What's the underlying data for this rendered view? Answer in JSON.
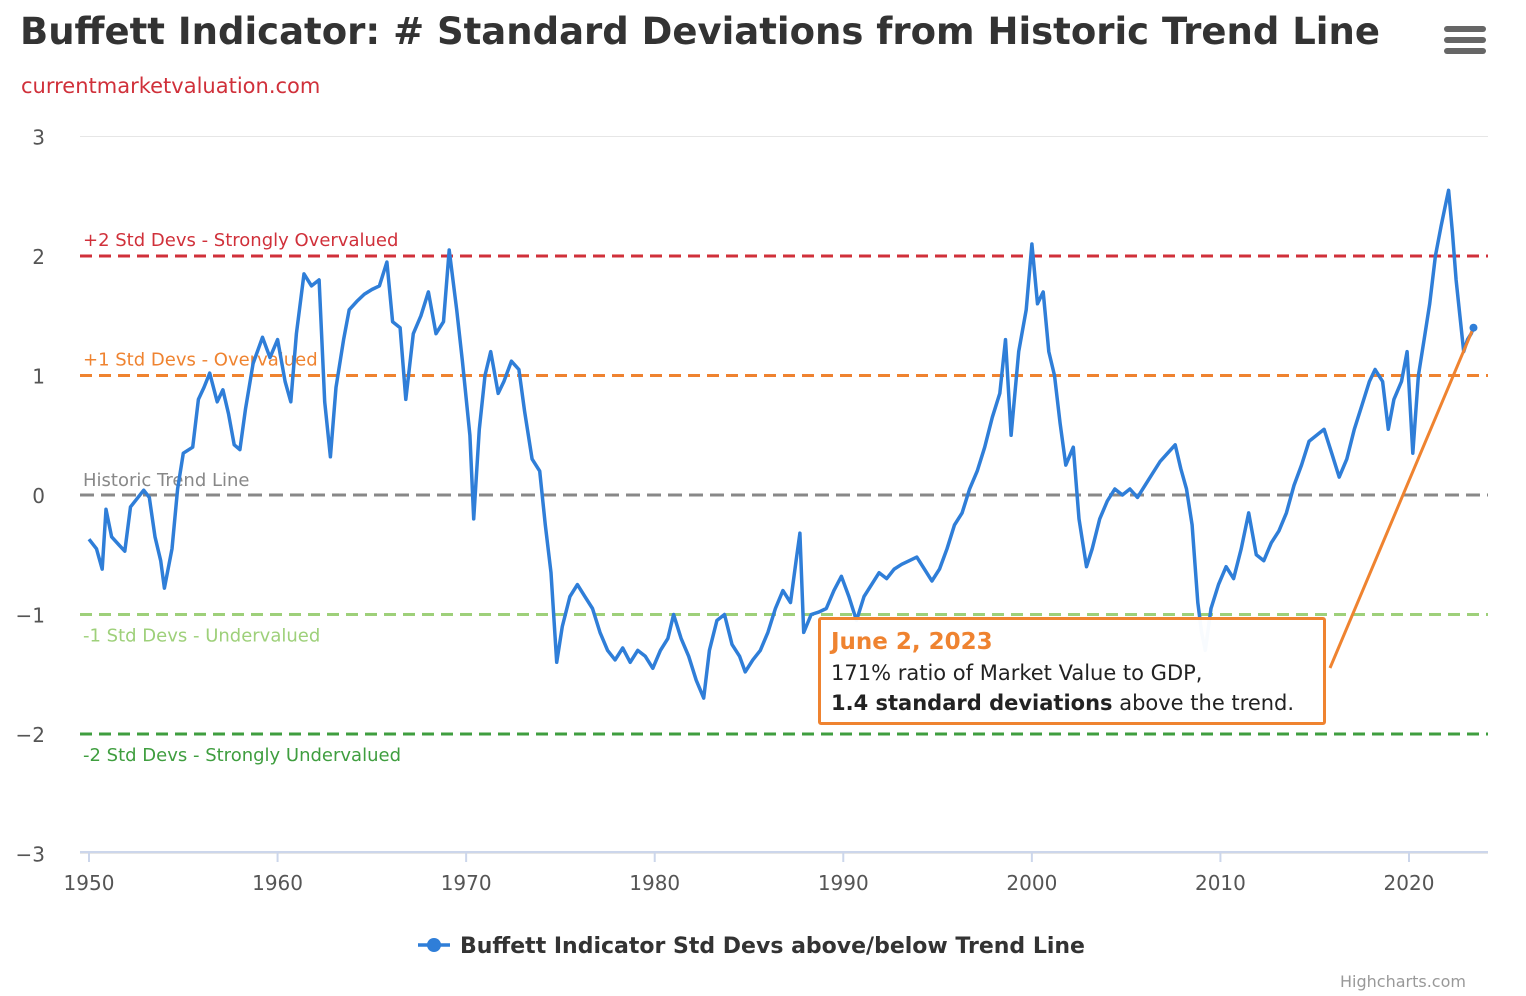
{
  "header": {
    "title": "Buffett Indicator: # Standard Deviations from Historic Trend Line",
    "subtitle": "currentmarketvaluation.com",
    "menu_icon": "hamburger-menu-icon"
  },
  "tooltip": {
    "date": "June 2, 2023",
    "line1": "171% ratio of Market Value to GDP,",
    "line2_bold": "1.4 standard deviations",
    "line2_rest": " above the trend."
  },
  "credits": "Highcharts.com",
  "colors": {
    "series": "#2f7ed8",
    "plus2": "#d0303a",
    "plus1": "#ef8330",
    "trend": "#888888",
    "minus1": "#9ed07a",
    "minus2": "#3f9e3f",
    "tooltip_border": "#ef8330"
  },
  "chart_data": {
    "type": "line",
    "title": "Buffett Indicator: # Standard Deviations from Historic Trend Line",
    "subtitle": "currentmarketvaluation.com",
    "xlim": [
      1950,
      2023.5
    ],
    "ylim": [
      -3,
      3
    ],
    "x_ticks": [
      1950,
      1960,
      1970,
      1980,
      1990,
      2000,
      2010,
      2020
    ],
    "y_ticks": [
      3,
      2,
      1,
      0,
      -1,
      -2,
      -3
    ],
    "grid": true,
    "legend": "bottom-center",
    "plot_lines": [
      {
        "value": 2,
        "label": "+2 Std Devs - Strongly Overvalued",
        "color": "#d0303a"
      },
      {
        "value": 1,
        "label": "+1 Std Devs - Overvalued",
        "color": "#ef8330"
      },
      {
        "value": 0,
        "label": "Historic Trend Line",
        "color": "#888888"
      },
      {
        "value": -1,
        "label": "-1 Std Devs - Undervalued",
        "color": "#9ed07a"
      },
      {
        "value": -2,
        "label": "-2 Std Devs - Strongly Undervalued",
        "color": "#3f9e3f"
      }
    ],
    "series": [
      {
        "name": "Buffett Indicator Std Devs above/below Trend Line",
        "points": [
          [
            1950.0,
            -0.37
          ],
          [
            1950.4,
            -0.45
          ],
          [
            1950.7,
            -0.62
          ],
          [
            1950.9,
            -0.12
          ],
          [
            1951.2,
            -0.35
          ],
          [
            1951.6,
            -0.42
          ],
          [
            1951.9,
            -0.47
          ],
          [
            1952.2,
            -0.1
          ],
          [
            1952.6,
            -0.02
          ],
          [
            1952.9,
            0.04
          ],
          [
            1953.2,
            -0.02
          ],
          [
            1953.5,
            -0.35
          ],
          [
            1953.8,
            -0.55
          ],
          [
            1954.0,
            -0.78
          ],
          [
            1954.4,
            -0.45
          ],
          [
            1954.7,
            0.05
          ],
          [
            1955.0,
            0.35
          ],
          [
            1955.5,
            0.4
          ],
          [
            1955.8,
            0.8
          ],
          [
            1956.1,
            0.9
          ],
          [
            1956.4,
            1.02
          ],
          [
            1956.8,
            0.78
          ],
          [
            1957.1,
            0.88
          ],
          [
            1957.4,
            0.68
          ],
          [
            1957.7,
            0.42
          ],
          [
            1958.0,
            0.38
          ],
          [
            1958.3,
            0.72
          ],
          [
            1958.7,
            1.1
          ],
          [
            1959.2,
            1.32
          ],
          [
            1959.6,
            1.15
          ],
          [
            1960.0,
            1.3
          ],
          [
            1960.4,
            0.95
          ],
          [
            1960.7,
            0.78
          ],
          [
            1961.0,
            1.35
          ],
          [
            1961.4,
            1.85
          ],
          [
            1961.8,
            1.75
          ],
          [
            1962.2,
            1.8
          ],
          [
            1962.5,
            0.78
          ],
          [
            1962.8,
            0.32
          ],
          [
            1963.1,
            0.9
          ],
          [
            1963.5,
            1.3
          ],
          [
            1963.8,
            1.55
          ],
          [
            1964.2,
            1.62
          ],
          [
            1964.6,
            1.68
          ],
          [
            1965.0,
            1.72
          ],
          [
            1965.4,
            1.75
          ],
          [
            1965.8,
            1.95
          ],
          [
            1966.1,
            1.45
          ],
          [
            1966.5,
            1.4
          ],
          [
            1966.8,
            0.8
          ],
          [
            1967.2,
            1.35
          ],
          [
            1967.6,
            1.5
          ],
          [
            1968.0,
            1.7
          ],
          [
            1968.4,
            1.35
          ],
          [
            1968.8,
            1.45
          ],
          [
            1969.1,
            2.05
          ],
          [
            1969.5,
            1.55
          ],
          [
            1969.8,
            1.12
          ],
          [
            1970.2,
            0.5
          ],
          [
            1970.4,
            -0.2
          ],
          [
            1970.7,
            0.55
          ],
          [
            1971.0,
            1.0
          ],
          [
            1971.3,
            1.2
          ],
          [
            1971.7,
            0.85
          ],
          [
            1972.0,
            0.95
          ],
          [
            1972.4,
            1.12
          ],
          [
            1972.8,
            1.05
          ],
          [
            1973.1,
            0.7
          ],
          [
            1973.5,
            0.3
          ],
          [
            1973.9,
            0.2
          ],
          [
            1974.2,
            -0.25
          ],
          [
            1974.5,
            -0.65
          ],
          [
            1974.8,
            -1.4
          ],
          [
            1975.1,
            -1.1
          ],
          [
            1975.5,
            -0.85
          ],
          [
            1975.9,
            -0.75
          ],
          [
            1976.3,
            -0.85
          ],
          [
            1976.7,
            -0.95
          ],
          [
            1977.1,
            -1.15
          ],
          [
            1977.5,
            -1.3
          ],
          [
            1977.9,
            -1.38
          ],
          [
            1978.3,
            -1.28
          ],
          [
            1978.7,
            -1.4
          ],
          [
            1979.1,
            -1.3
          ],
          [
            1979.5,
            -1.35
          ],
          [
            1979.9,
            -1.45
          ],
          [
            1980.3,
            -1.3
          ],
          [
            1980.7,
            -1.2
          ],
          [
            1981.0,
            -1.0
          ],
          [
            1981.4,
            -1.2
          ],
          [
            1981.8,
            -1.35
          ],
          [
            1982.2,
            -1.55
          ],
          [
            1982.6,
            -1.7
          ],
          [
            1982.9,
            -1.3
          ],
          [
            1983.3,
            -1.05
          ],
          [
            1983.7,
            -1.0
          ],
          [
            1984.1,
            -1.25
          ],
          [
            1984.5,
            -1.35
          ],
          [
            1984.8,
            -1.48
          ],
          [
            1985.2,
            -1.38
          ],
          [
            1985.6,
            -1.3
          ],
          [
            1986.0,
            -1.15
          ],
          [
            1986.4,
            -0.95
          ],
          [
            1986.8,
            -0.8
          ],
          [
            1987.2,
            -0.9
          ],
          [
            1987.5,
            -0.55
          ],
          [
            1987.7,
            -0.32
          ],
          [
            1987.9,
            -1.15
          ],
          [
            1988.3,
            -1.0
          ],
          [
            1988.7,
            -0.98
          ],
          [
            1989.1,
            -0.95
          ],
          [
            1989.5,
            -0.8
          ],
          [
            1989.9,
            -0.68
          ],
          [
            1990.3,
            -0.85
          ],
          [
            1990.7,
            -1.05
          ],
          [
            1991.1,
            -0.85
          ],
          [
            1991.5,
            -0.75
          ],
          [
            1991.9,
            -0.65
          ],
          [
            1992.3,
            -0.7
          ],
          [
            1992.7,
            -0.62
          ],
          [
            1993.1,
            -0.58
          ],
          [
            1993.5,
            -0.55
          ],
          [
            1993.9,
            -0.52
          ],
          [
            1994.3,
            -0.62
          ],
          [
            1994.7,
            -0.72
          ],
          [
            1995.1,
            -0.62
          ],
          [
            1995.5,
            -0.45
          ],
          [
            1995.9,
            -0.25
          ],
          [
            1996.3,
            -0.15
          ],
          [
            1996.7,
            0.05
          ],
          [
            1997.1,
            0.2
          ],
          [
            1997.5,
            0.4
          ],
          [
            1997.9,
            0.65
          ],
          [
            1998.3,
            0.85
          ],
          [
            1998.6,
            1.3
          ],
          [
            1998.9,
            0.5
          ],
          [
            1999.3,
            1.2
          ],
          [
            1999.7,
            1.55
          ],
          [
            2000.0,
            2.1
          ],
          [
            2000.3,
            1.6
          ],
          [
            2000.6,
            1.7
          ],
          [
            2000.9,
            1.2
          ],
          [
            2001.2,
            1.0
          ],
          [
            2001.5,
            0.6
          ],
          [
            2001.8,
            0.25
          ],
          [
            2002.2,
            0.4
          ],
          [
            2002.5,
            -0.2
          ],
          [
            2002.9,
            -0.6
          ],
          [
            2003.2,
            -0.45
          ],
          [
            2003.6,
            -0.2
          ],
          [
            2004.0,
            -0.05
          ],
          [
            2004.4,
            0.05
          ],
          [
            2004.8,
            0.0
          ],
          [
            2005.2,
            0.05
          ],
          [
            2005.6,
            -0.02
          ],
          [
            2006.0,
            0.08
          ],
          [
            2006.4,
            0.18
          ],
          [
            2006.8,
            0.28
          ],
          [
            2007.2,
            0.35
          ],
          [
            2007.6,
            0.42
          ],
          [
            2007.9,
            0.22
          ],
          [
            2008.2,
            0.05
          ],
          [
            2008.5,
            -0.25
          ],
          [
            2008.8,
            -0.9
          ],
          [
            2009.0,
            -1.15
          ],
          [
            2009.2,
            -1.3
          ],
          [
            2009.5,
            -0.95
          ],
          [
            2009.9,
            -0.75
          ],
          [
            2010.3,
            -0.6
          ],
          [
            2010.7,
            -0.7
          ],
          [
            2011.1,
            -0.45
          ],
          [
            2011.5,
            -0.15
          ],
          [
            2011.9,
            -0.5
          ],
          [
            2012.3,
            -0.55
          ],
          [
            2012.7,
            -0.4
          ],
          [
            2013.1,
            -0.3
          ],
          [
            2013.5,
            -0.15
          ],
          [
            2013.9,
            0.08
          ],
          [
            2014.3,
            0.25
          ],
          [
            2014.7,
            0.45
          ],
          [
            2015.1,
            0.5
          ],
          [
            2015.5,
            0.55
          ],
          [
            2015.9,
            0.35
          ],
          [
            2016.3,
            0.15
          ],
          [
            2016.7,
            0.3
          ],
          [
            2017.1,
            0.55
          ],
          [
            2017.5,
            0.75
          ],
          [
            2017.9,
            0.95
          ],
          [
            2018.2,
            1.05
          ],
          [
            2018.6,
            0.95
          ],
          [
            2018.9,
            0.55
          ],
          [
            2019.2,
            0.8
          ],
          [
            2019.6,
            0.95
          ],
          [
            2019.9,
            1.2
          ],
          [
            2020.2,
            0.35
          ],
          [
            2020.5,
            1.0
          ],
          [
            2020.8,
            1.3
          ],
          [
            2021.1,
            1.6
          ],
          [
            2021.4,
            2.0
          ],
          [
            2021.7,
            2.25
          ],
          [
            2021.9,
            2.4
          ],
          [
            2022.1,
            2.55
          ],
          [
            2022.3,
            2.2
          ],
          [
            2022.5,
            1.8
          ],
          [
            2022.7,
            1.5
          ],
          [
            2022.9,
            1.2
          ],
          [
            2023.1,
            1.3
          ],
          [
            2023.3,
            1.35
          ],
          [
            2023.42,
            1.4
          ]
        ]
      }
    ]
  }
}
